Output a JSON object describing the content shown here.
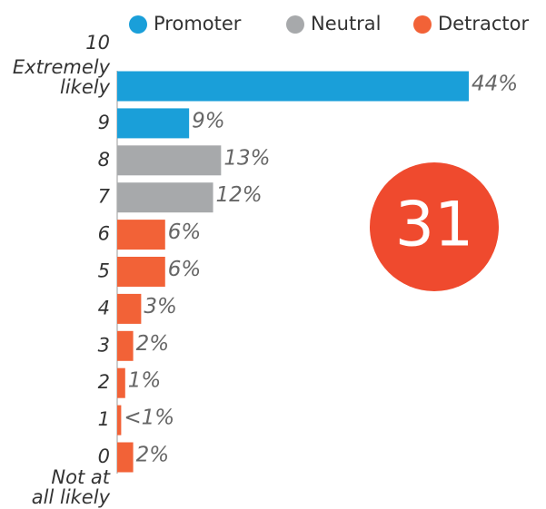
{
  "chart_data": {
    "type": "bar",
    "orientation": "horizontal",
    "categories": [
      "10",
      "9",
      "8",
      "7",
      "6",
      "5",
      "4",
      "3",
      "2",
      "1",
      "0"
    ],
    "top_label_lines": [
      "Extremely",
      "likely"
    ],
    "bottom_label_lines": [
      "Not at",
      "all likely"
    ],
    "series": [
      {
        "name": "Promoter",
        "color": "#1a9fd9",
        "values": [
          44,
          9,
          null,
          null,
          null,
          null,
          null,
          null,
          null,
          null,
          null
        ],
        "value_labels": [
          "44%",
          "9%",
          null,
          null,
          null,
          null,
          null,
          null,
          null,
          null,
          null
        ]
      },
      {
        "name": "Neutral",
        "color": "#a7a9ab",
        "values": [
          null,
          null,
          13,
          12,
          null,
          null,
          null,
          null,
          null,
          null,
          null
        ],
        "value_labels": [
          null,
          null,
          "13%",
          "12%",
          null,
          null,
          null,
          null,
          null,
          null,
          null
        ]
      },
      {
        "name": "Detractor",
        "color": "#f26237",
        "values": [
          null,
          null,
          null,
          null,
          6,
          6,
          3,
          2,
          1,
          0.5,
          2
        ],
        "value_labels": [
          null,
          null,
          null,
          null,
          "6%",
          "6%",
          "3%",
          "2%",
          "1%",
          "<1%",
          "2%"
        ]
      }
    ],
    "score": "31",
    "score_color": "#ef4a2e"
  }
}
